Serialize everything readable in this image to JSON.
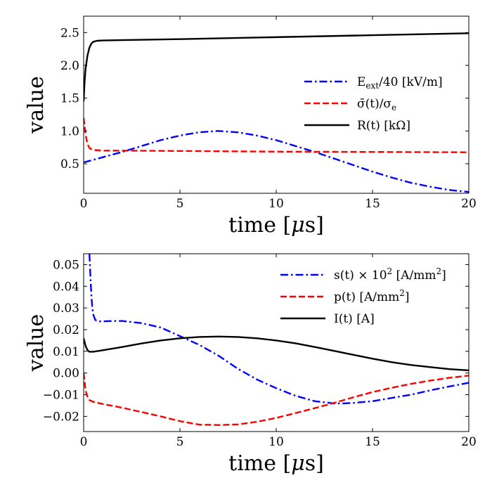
{
  "chart_data": [
    {
      "type": "line",
      "xlabel_main": "time [",
      "xlabel_mu": "μ",
      "xlabel_tail": "s]",
      "ylabel": "value",
      "xlim": [
        0,
        20
      ],
      "ylim": [
        0.05,
        2.75
      ],
      "xticks": [
        0,
        5,
        10,
        15,
        20
      ],
      "yticks": [
        "0.5",
        "1.0",
        "1.5",
        "2.0",
        "2.5"
      ],
      "ytick_values": [
        0.5,
        1.0,
        1.5,
        2.0,
        2.5
      ],
      "legend_position": "center-right",
      "series": [
        {
          "name_main": "E",
          "name_sub": "ext",
          "name_tail": "/40 [kV/m]",
          "color": "#0000ff",
          "style": "dashdot",
          "x": [
            0,
            1,
            2,
            3,
            4,
            5,
            6,
            7,
            8,
            9,
            10,
            11,
            12,
            13,
            14,
            15,
            16,
            17,
            18,
            19,
            20
          ],
          "y": [
            0.52,
            0.6,
            0.68,
            0.77,
            0.86,
            0.93,
            0.98,
            1.0,
            0.98,
            0.93,
            0.86,
            0.77,
            0.68,
            0.58,
            0.48,
            0.38,
            0.29,
            0.21,
            0.15,
            0.1,
            0.07
          ]
        },
        {
          "name_main": "σ̄(t)/σ",
          "name_sub": "e",
          "name_tail": "",
          "color": "#ff0000",
          "style": "dashed",
          "x": [
            0,
            0.1,
            0.2,
            0.3,
            0.5,
            0.8,
            1,
            2,
            5,
            10,
            15,
            20
          ],
          "y": [
            1.2,
            0.95,
            0.8,
            0.74,
            0.71,
            0.705,
            0.7,
            0.7,
            0.695,
            0.685,
            0.68,
            0.675
          ]
        },
        {
          "name_main": "R(t) [kΩ]",
          "name_sub": "",
          "name_tail": "",
          "color": "#000000",
          "style": "solid",
          "x": [
            0,
            0.05,
            0.1,
            0.2,
            0.3,
            0.4,
            0.5,
            0.7,
            1,
            2,
            5,
            10,
            15,
            20
          ],
          "y": [
            1.45,
            1.75,
            1.95,
            2.15,
            2.27,
            2.33,
            2.36,
            2.375,
            2.38,
            2.385,
            2.4,
            2.43,
            2.46,
            2.49
          ]
        }
      ]
    },
    {
      "type": "line",
      "xlabel_main": "time [",
      "xlabel_mu": "μ",
      "xlabel_tail": "s]",
      "ylabel": "value",
      "xlim": [
        0,
        20
      ],
      "ylim": [
        -0.027,
        0.055
      ],
      "xticks": [
        0,
        5,
        10,
        15,
        20
      ],
      "yticks": [
        "−0.02",
        "−0.01",
        "0.00",
        "0.01",
        "0.02",
        "0.03",
        "0.04",
        "0.05"
      ],
      "ytick_values": [
        -0.02,
        -0.01,
        0.0,
        0.01,
        0.02,
        0.03,
        0.04,
        0.05
      ],
      "legend_position": "top-right",
      "series": [
        {
          "name_main": "s(t) × 10",
          "name_sup": "2",
          "name_tail": " [A/mm",
          "name_sup2": "2",
          "name_end": "]",
          "color": "#0000ff",
          "style": "dashdot",
          "x": [
            0.3,
            0.35,
            0.4,
            0.45,
            0.5,
            0.6,
            0.7,
            0.8,
            1,
            1.5,
            2,
            3,
            4,
            5,
            6,
            7,
            8,
            9,
            10,
            11,
            12,
            13,
            13.5,
            14,
            15,
            16,
            17,
            18,
            19,
            20
          ],
          "y": [
            0.055,
            0.045,
            0.036,
            0.03,
            0.027,
            0.0245,
            0.024,
            0.0238,
            0.0238,
            0.024,
            0.024,
            0.023,
            0.021,
            0.017,
            0.013,
            0.008,
            0.002,
            -0.003,
            -0.007,
            -0.0105,
            -0.013,
            -0.014,
            -0.014,
            -0.0138,
            -0.013,
            -0.0115,
            -0.01,
            -0.008,
            -0.0062,
            -0.0045
          ]
        },
        {
          "name_main": "p(t) [A/mm",
          "name_sup": "2",
          "name_tail": "]",
          "name_sup2": "",
          "name_end": "",
          "color": "#ff0000",
          "style": "dashed",
          "x": [
            0,
            0.1,
            0.2,
            0.3,
            0.5,
            1,
            2,
            3,
            4,
            5,
            6,
            7,
            8,
            9,
            10,
            11,
            12,
            13,
            14,
            15,
            16,
            17,
            18,
            19,
            20
          ],
          "y": [
            0.0,
            -0.008,
            -0.011,
            -0.0125,
            -0.0133,
            -0.0143,
            -0.016,
            -0.018,
            -0.02,
            -0.0222,
            -0.0238,
            -0.024,
            -0.0237,
            -0.0225,
            -0.0207,
            -0.0185,
            -0.0162,
            -0.0138,
            -0.0112,
            -0.0088,
            -0.0068,
            -0.005,
            -0.0035,
            -0.0022,
            -0.0012
          ]
        },
        {
          "name_main": "I(t) [A]",
          "name_sup": "",
          "name_tail": "",
          "name_sup2": "",
          "name_end": "",
          "color": "#000000",
          "style": "solid",
          "x": [
            0,
            0.1,
            0.2,
            0.3,
            0.5,
            1,
            2,
            3,
            4,
            5,
            6,
            7,
            8,
            9,
            10,
            11,
            12,
            13,
            14,
            15,
            16,
            17,
            18,
            19,
            20
          ],
          "y": [
            0.016,
            0.0125,
            0.0105,
            0.0098,
            0.0098,
            0.0105,
            0.012,
            0.0136,
            0.015,
            0.016,
            0.0166,
            0.0168,
            0.0166,
            0.016,
            0.015,
            0.0137,
            0.012,
            0.0102,
            0.0084,
            0.0066,
            0.005,
            0.0037,
            0.0027,
            0.0018,
            0.0012
          ]
        }
      ]
    }
  ]
}
